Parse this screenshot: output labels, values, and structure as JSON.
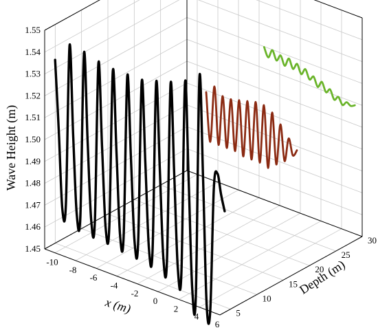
{
  "chart_data": {
    "type": "line",
    "title": "",
    "xlabel": "x (m)",
    "ylabel": "Wave Height (m)",
    "zlabel": "Depth (m)",
    "x_ticks": [
      "-10",
      "-8",
      "-6",
      "-4",
      "-2",
      "0",
      "2",
      "4",
      "6"
    ],
    "depth_ticks": [
      "5",
      "10",
      "15",
      "20",
      "25",
      "30"
    ],
    "wave_ticks": [
      "1.45",
      "1.46",
      "1.47",
      "1.48",
      "1.49",
      "1.50",
      "1.51",
      "1.52",
      "1.53",
      "1.54",
      "1.55"
    ],
    "x_range": [
      -11,
      6
    ],
    "depth_range": [
      3,
      30
    ],
    "wave_range": [
      1.45,
      1.55
    ],
    "grid": true,
    "series": [
      {
        "color": "#000000",
        "x": [
          -10.5,
          -10.15,
          -9.8,
          -9.45,
          -9.1,
          -8.75,
          -8.4,
          -8.05,
          -7.7,
          -7.35,
          -7.0,
          -6.65,
          -6.3,
          -5.95,
          -5.6,
          -5.25,
          -4.9,
          -4.55,
          -4.2,
          -3.85,
          -3.5,
          -3.15,
          -2.8,
          -2.45,
          -2.1,
          -1.75,
          -1.4,
          -1.05,
          -0.7,
          -0.35,
          0.0,
          0.35,
          0.7,
          1.05,
          1.4,
          1.75,
          2.1,
          2.45,
          2.8,
          3.15,
          3.5,
          3.85,
          4.2,
          4.55,
          4.9,
          5.25,
          5.6,
          5.95
        ],
        "depth": [
          4,
          4,
          4,
          4,
          4,
          4,
          4,
          4,
          4,
          4,
          4,
          4,
          4,
          4,
          4,
          4,
          4,
          4,
          4,
          4,
          4,
          4,
          4,
          4,
          4,
          4,
          4,
          4,
          4,
          4,
          4,
          4,
          4,
          4,
          4,
          4,
          4,
          4,
          4,
          4,
          4,
          4,
          4,
          4,
          4,
          4,
          4,
          4
        ],
        "values": [
          1.536,
          1.505,
          1.469,
          1.472,
          1.545,
          1.505,
          1.469,
          1.469,
          1.544,
          1.505,
          1.469,
          1.468,
          1.542,
          1.505,
          1.468,
          1.468,
          1.541,
          1.505,
          1.467,
          1.467,
          1.541,
          1.505,
          1.467,
          1.466,
          1.541,
          1.505,
          1.466,
          1.465,
          1.543,
          1.505,
          1.464,
          1.463,
          1.545,
          1.505,
          1.462,
          1.46,
          1.548,
          1.505,
          1.455,
          1.452,
          1.553,
          1.508,
          1.45,
          1.448,
          1.505,
          1.512,
          1.503,
          1.496
        ]
      },
      {
        "color": "#8b2a12",
        "x": [
          -3.0,
          -2.6,
          -2.2,
          -1.8,
          -1.4,
          -1.0,
          -0.6,
          -0.2,
          0.2,
          0.6,
          1.0,
          1.4,
          1.8,
          2.2,
          2.6,
          3.0,
          3.4,
          3.8,
          4.2,
          4.6,
          5.0,
          5.4,
          5.8
        ],
        "depth": [
          18,
          18,
          18,
          18,
          18,
          18,
          18,
          18,
          18,
          18,
          18,
          18,
          18,
          18,
          18,
          18,
          18,
          18,
          18,
          18,
          18,
          18,
          18
        ],
        "values": [
          1.516,
          1.494,
          1.52,
          1.494,
          1.517,
          1.494,
          1.517,
          1.494,
          1.518,
          1.493,
          1.519,
          1.493,
          1.52,
          1.493,
          1.52,
          1.492,
          1.518,
          1.495,
          1.514,
          1.498,
          1.509,
          1.502,
          1.505
        ]
      },
      {
        "color": "#6ab42a",
        "x": [
          -3.0,
          -2.6,
          -2.2,
          -1.8,
          -1.4,
          -1.0,
          -0.6,
          -0.2,
          0.2,
          0.6,
          1.0,
          1.4,
          1.8,
          2.2,
          2.6,
          3.0,
          3.4,
          3.8,
          4.2,
          4.6,
          5.0,
          5.4,
          5.8
        ],
        "depth": [
          29,
          29,
          29,
          29,
          29,
          29,
          29,
          29,
          29,
          29,
          29,
          29,
          29,
          29,
          29,
          29,
          29,
          29,
          29,
          29,
          29,
          29,
          29
        ],
        "values": [
          1.522,
          1.518,
          1.522,
          1.518,
          1.521,
          1.517,
          1.521,
          1.517,
          1.52,
          1.516,
          1.519,
          1.515,
          1.517,
          1.513,
          1.516,
          1.512,
          1.514,
          1.51,
          1.512,
          1.509,
          1.511,
          1.51,
          1.511
        ]
      }
    ]
  }
}
